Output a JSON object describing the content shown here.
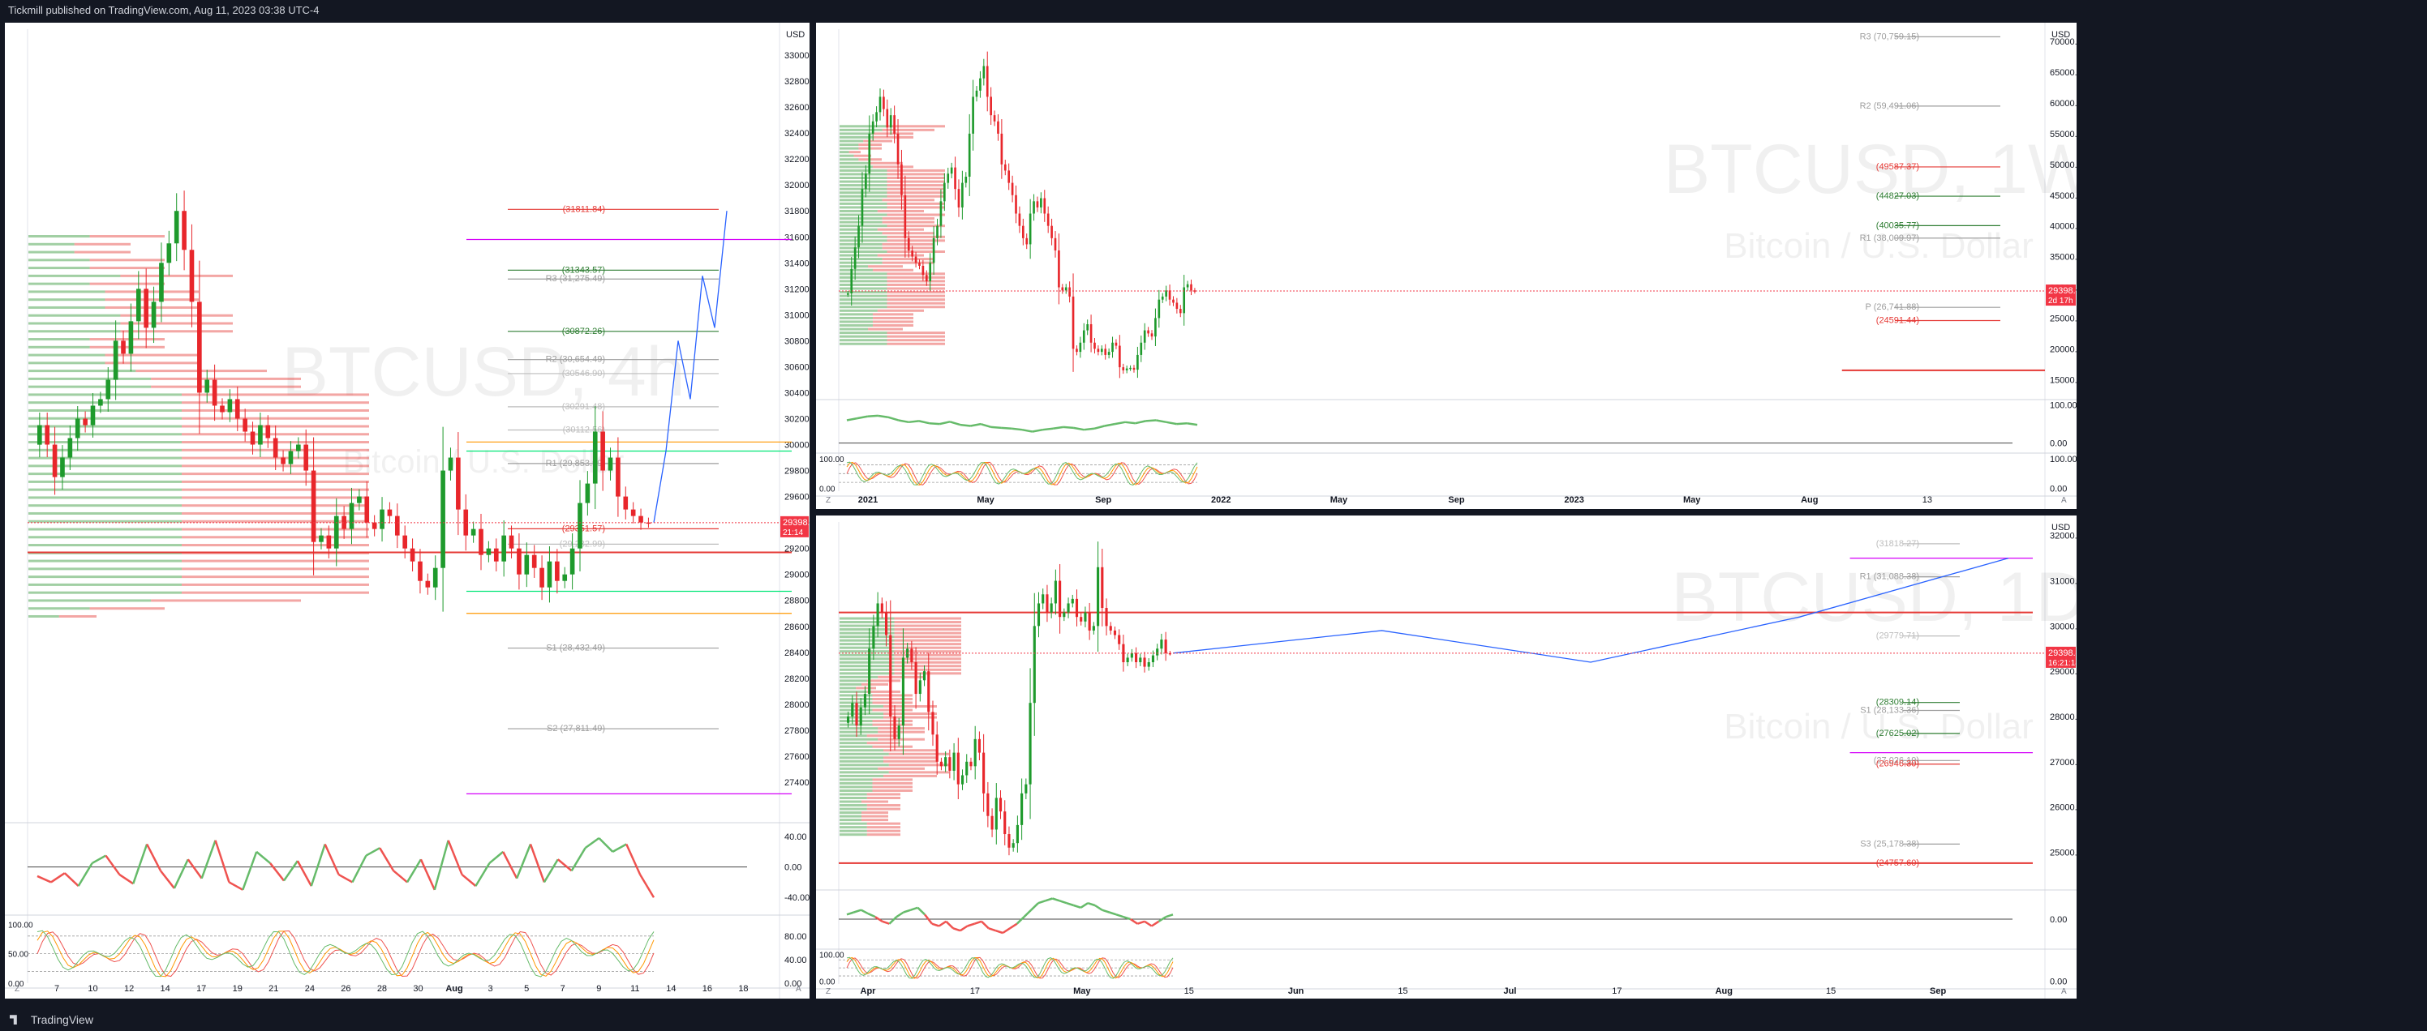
{
  "header": {
    "publish_line": "Tickmill published on TradingView.com, Aug 11, 2023 03:38 UTC-4"
  },
  "footer": {
    "brand": "TradingView"
  },
  "colors": {
    "up": "#26a69a",
    "down": "#ef5350",
    "green_candle": "#1e9a2c",
    "red_candle": "#e8262b",
    "background": "#131722",
    "panel": "#ffffff",
    "projection": "#2962ff"
  },
  "chart_data": [
    {
      "type": "candlestick",
      "title": "BTCUSD, 4h",
      "subtitle": "Bitcoin / U.S. Dollar",
      "currency": "USD",
      "ylim": [
        27100,
        33200
      ],
      "y_ticks": [
        "33000.00",
        "32800.00",
        "32600.00",
        "32400.00",
        "32200.00",
        "32000.00",
        "31800.00",
        "31600.00",
        "31400.00",
        "31200.00",
        "31000.00",
        "30800.00",
        "30600.00",
        "30400.00",
        "30200.00",
        "30000.00",
        "29800.00",
        "29600.00",
        "29400.00",
        "29200.00",
        "29000.00",
        "28800.00",
        "28600.00",
        "28400.00",
        "28200.00",
        "28000.00",
        "27800.00",
        "27600.00",
        "27400.00"
      ],
      "y_tick_values": [
        33000,
        32800,
        32600,
        32400,
        32200,
        32000,
        31800,
        31600,
        31400,
        31200,
        31000,
        30800,
        30600,
        30400,
        30200,
        30000,
        29800,
        29600,
        29400,
        29200,
        29000,
        28800,
        28600,
        28400,
        28200,
        28000,
        27800,
        27600,
        27400
      ],
      "x_ticks": [
        "7",
        "10",
        "12",
        "14",
        "17",
        "19",
        "21",
        "24",
        "26",
        "28",
        "30",
        "Aug",
        "3",
        "5",
        "7",
        "9",
        "11",
        "14",
        "16",
        "18"
      ],
      "price_tag": {
        "value": 29398.48,
        "label": "29398.48",
        "countdown": "21:14"
      },
      "close_series": [
        30150,
        30000,
        29750,
        29900,
        30050,
        30200,
        30150,
        30300,
        30350,
        30500,
        30800,
        30700,
        30950,
        31200,
        30900,
        31100,
        31400,
        31550,
        31800,
        31500,
        31100,
        30400,
        30500,
        30300,
        30250,
        30350,
        30200,
        30100,
        30000,
        30150,
        30050,
        29900,
        29850,
        29950,
        30000,
        29800,
        29250,
        29300,
        29200,
        29450,
        29350,
        29550,
        29600,
        29400,
        29350,
        29500,
        29450,
        29300,
        29200,
        29100,
        28950,
        28900,
        29050,
        29800,
        29900,
        29500,
        29300,
        29350,
        29150,
        29200,
        29100,
        29300,
        29200,
        29000,
        29150,
        29050,
        28900,
        29100,
        28950,
        29000,
        29200,
        29550,
        29700,
        30100,
        29800,
        29900,
        29600,
        29500,
        29450,
        29400,
        29398
      ],
      "levels": [
        {
          "label": "(31811.84)",
          "value": 31811.84,
          "color": "#e53935"
        },
        {
          "label": "(31343.57)",
          "value": 31343.57,
          "color": "#2e7d32"
        },
        {
          "label": "R3 (31,275.49)",
          "value": 31275.49,
          "color": "#9e9e9e"
        },
        {
          "label": "(30872.26)",
          "value": 30872.26,
          "color": "#2e7d32"
        },
        {
          "label": "R2 (30,654.49)",
          "value": 30654.49,
          "color": "#9e9e9e"
        },
        {
          "label": "(30546.90)",
          "value": 30546.9,
          "color": "#bdbdbd"
        },
        {
          "label": "(30291.48)",
          "value": 30291.48,
          "color": "#bdbdbd"
        },
        {
          "label": "(30112.56)",
          "value": 30112.56,
          "color": "#bdbdbd"
        },
        {
          "label": "R1 (29,853.99)",
          "value": 29853.99,
          "color": "#9e9e9e"
        },
        {
          "label": "(29351.57)",
          "value": 29351.57,
          "color": "#e53935"
        },
        {
          "label": "(29,232.99)",
          "value": 29232.99,
          "color": "#bdbdbd"
        },
        {
          "label": "S1 (28,432.49)",
          "value": 28432.49,
          "color": "#9e9e9e"
        },
        {
          "label": "S2 (27,811.49)",
          "value": 27811.49,
          "color": "#9e9e9e"
        }
      ],
      "horizontal_lines": [
        {
          "value": 31580,
          "color": "#d500f9"
        },
        {
          "value": 30020,
          "color": "#ff9800"
        },
        {
          "value": 29950,
          "color": "#00e676"
        },
        {
          "value": 29170,
          "color": "#e53935"
        },
        {
          "value": 28870,
          "color": "#00e676"
        },
        {
          "value": 28700,
          "color": "#ff9800"
        },
        {
          "value": 27310,
          "color": "#d500f9"
        }
      ],
      "projection": [
        29400,
        29950,
        30800,
        30350,
        31300,
        30900,
        31800
      ],
      "rsi": {
        "ticks": [
          "40.00",
          "0.00",
          "-40.00"
        ],
        "tick_values": [
          40,
          0,
          -40
        ],
        "ylim": [
          -60,
          55
        ],
        "values": [
          -12,
          -20,
          -8,
          -25,
          5,
          15,
          -10,
          -22,
          30,
          -5,
          -28,
          10,
          -15,
          35,
          -20,
          -30,
          20,
          5,
          -18,
          8,
          -25,
          30,
          -10,
          -20,
          15,
          25,
          -5,
          -20,
          10,
          -30,
          35,
          -10,
          -25,
          5,
          20,
          -15,
          30,
          -20,
          10,
          -5,
          25,
          38,
          20,
          30,
          -10,
          -40
        ]
      },
      "stoch": {
        "ticks": [
          "100.00",
          "50.00",
          "0.00"
        ],
        "right_ticks": [
          "80.00",
          "40.00",
          "0.00"
        ],
        "ylim": [
          0,
          110
        ]
      }
    },
    {
      "type": "candlestick",
      "title": "BTCUSD, 1W",
      "subtitle": "Bitcoin / U.S. Dollar",
      "currency": "USD",
      "ylim": [
        12000,
        72000
      ],
      "y_ticks": [
        "70000.00",
        "65000.00",
        "60000.00",
        "55000.00",
        "50000.00",
        "45000.00",
        "40000.00",
        "35000.00",
        "30000.00",
        "25000.00",
        "20000.00",
        "15000.00"
      ],
      "y_tick_values": [
        70000,
        65000,
        60000,
        55000,
        50000,
        45000,
        40000,
        35000,
        30000,
        25000,
        20000,
        15000
      ],
      "x_ticks": [
        "2021",
        "May",
        "Sep",
        "2022",
        "May",
        "Sep",
        "2023",
        "May",
        "Aug",
        "13"
      ],
      "price_tag": {
        "value": 29398.47,
        "label": "29398.47",
        "countdown": "2d 17h"
      },
      "close_series": [
        29000,
        33000,
        36500,
        40000,
        46000,
        48500,
        55000,
        57000,
        58500,
        61000,
        59000,
        56000,
        58000,
        55000,
        50000,
        45000,
        38000,
        36000,
        35000,
        34000,
        33500,
        32000,
        31000,
        34000,
        38000,
        40000,
        44000,
        47000,
        48500,
        49500,
        46000,
        43000,
        47000,
        48000,
        55000,
        61000,
        62000,
        64000,
        66000,
        61000,
        58000,
        57000,
        55000,
        50000,
        49000,
        47000,
        45000,
        42000,
        40000,
        38000,
        37000,
        42000,
        44000,
        43000,
        44500,
        42000,
        40000,
        38000,
        36000,
        30000,
        29500,
        30000,
        28500,
        20000,
        19500,
        21000,
        23000,
        24000,
        21000,
        20000,
        19500,
        20000,
        19000,
        19500,
        21000,
        20500,
        17000,
        16500,
        16800,
        16900,
        16600,
        19000,
        21000,
        23000,
        22500,
        22000,
        25000,
        28000,
        28500,
        29500,
        28000,
        27500,
        26500,
        25800,
        30000,
        30500,
        29500,
        29398
      ],
      "levels": [
        {
          "label": "R3 (70,759.15)",
          "value": 70759.15,
          "color": "#9e9e9e"
        },
        {
          "label": "R2 (59,491.06)",
          "value": 59491.06,
          "color": "#9e9e9e"
        },
        {
          "label": "(49587.37)",
          "value": 49587.37,
          "color": "#e53935"
        },
        {
          "label": "(44827.03)",
          "value": 44827.03,
          "color": "#2e7d32"
        },
        {
          "label": "(40035.77)",
          "value": 40035.77,
          "color": "#2e7d32"
        },
        {
          "label": "R1 (38,009.97)",
          "value": 38009.97,
          "color": "#9e9e9e"
        },
        {
          "label": "P (26,741.88)",
          "value": 26741.88,
          "color": "#9e9e9e"
        },
        {
          "label": "(24591.44)",
          "value": 24591.44,
          "color": "#e53935"
        }
      ],
      "horizontal_lines": [
        {
          "value": 16500,
          "color": "#e53935"
        }
      ],
      "rsi": {
        "ticks": [
          "100.00",
          "0.00"
        ],
        "tick_values": [
          100,
          0
        ],
        "ylim": [
          -20,
          110
        ],
        "values": [
          60,
          65,
          70,
          72,
          68,
          60,
          55,
          58,
          52,
          50,
          56,
          48,
          45,
          50,
          42,
          40,
          38,
          35,
          30,
          35,
          38,
          42,
          40,
          35,
          38,
          45,
          50,
          55,
          52,
          58,
          60,
          55,
          50,
          52,
          48
        ]
      },
      "stoch": {
        "ticks": [
          "100.00",
          "0.00"
        ],
        "right_ticks": [
          "100.00",
          "0.00"
        ],
        "ylim": [
          -10,
          120
        ]
      }
    },
    {
      "type": "candlestick",
      "title": "BTCUSD, 1D",
      "subtitle": "Bitcoin / U.S. Dollar",
      "currency": "USD",
      "ylim": [
        24200,
        32300
      ],
      "y_ticks": [
        "32000.00",
        "31000.00",
        "30000.00",
        "29000.00",
        "28000.00",
        "27000.00",
        "26000.00",
        "25000.00"
      ],
      "y_tick_values": [
        32000,
        31000,
        30000,
        29000,
        28000,
        27000,
        26000,
        25000
      ],
      "x_ticks": [
        "Apr",
        "17",
        "May",
        "15",
        "Jun",
        "15",
        "Jul",
        "17",
        "Aug",
        "15",
        "Sep"
      ],
      "price_tag": {
        "value": 29398.47,
        "label": "29398.47",
        "countdown": "16:21:14"
      },
      "close_series": [
        28000,
        28300,
        27800,
        28200,
        28500,
        29500,
        30000,
        30500,
        30300,
        29800,
        28000,
        27500,
        27800,
        29300,
        29500,
        29200,
        28500,
        28800,
        29000,
        28100,
        27600,
        27000,
        26900,
        27100,
        26800,
        27200,
        26500,
        26700,
        27000,
        26900,
        27500,
        27200,
        26300,
        25800,
        25500,
        26200,
        25900,
        25400,
        25100,
        25200,
        25600,
        26300,
        26500,
        28300,
        30000,
        30500,
        30700,
        30300,
        30500,
        31000,
        30200,
        30300,
        30500,
        30600,
        30200,
        30100,
        30300,
        29900,
        30000,
        31300,
        30400,
        30000,
        29900,
        29800,
        29600,
        29200,
        29300,
        29400,
        29200,
        29300,
        29100,
        29200,
        29350,
        29500,
        29700,
        29400,
        29398
      ],
      "levels": [
        {
          "label": "(31818.27)",
          "value": 31818.27,
          "color": "#bdbdbd"
        },
        {
          "label": "R1 (31,088.38)",
          "value": 31088.38,
          "color": "#9e9e9e"
        },
        {
          "label": "(29779.71)",
          "value": 29779.71,
          "color": "#bdbdbd"
        },
        {
          "label": "(28309.14)",
          "value": 28309.14,
          "color": "#2e7d32"
        },
        {
          "label": "S1 (28,133.36)",
          "value": 28133.36,
          "color": "#9e9e9e"
        },
        {
          "label": "(27625.02)",
          "value": 27625.02,
          "color": "#2e7d32"
        },
        {
          "label": "(27,026.19)",
          "value": 27026.19,
          "color": "#9e9e9e"
        },
        {
          "label": "(26946.30)",
          "value": 26946.3,
          "color": "#e53935"
        },
        {
          "label": "S3 (25,178.38)",
          "value": 25178.38,
          "color": "#9e9e9e"
        },
        {
          "label": "(24757.60)",
          "value": 24757.6,
          "color": "#e53935"
        }
      ],
      "horizontal_lines": [
        {
          "value": 30300,
          "color": "#e53935"
        },
        {
          "value": 31500,
          "color": "#d500f9"
        },
        {
          "value": 27200,
          "color": "#d500f9"
        },
        {
          "value": 24757.6,
          "color": "#e53935"
        }
      ],
      "projection": [
        29400,
        29900,
        29200,
        30200,
        31500
      ],
      "rsi": {
        "ticks": [
          "0.00"
        ],
        "tick_values": [
          0
        ],
        "ylim": [
          -60,
          60
        ],
        "values": [
          10,
          15,
          20,
          12,
          5,
          -5,
          -10,
          5,
          15,
          20,
          25,
          10,
          -10,
          -15,
          -5,
          -20,
          -25,
          -15,
          -10,
          -5,
          -20,
          -25,
          -30,
          -20,
          -10,
          5,
          20,
          35,
          40,
          45,
          40,
          35,
          30,
          25,
          35,
          30,
          20,
          15,
          10,
          5,
          0,
          -10,
          -5,
          -15,
          -5,
          5,
          10
        ]
      },
      "stoch": {
        "ticks": [
          "100.00",
          "0.00"
        ],
        "right_ticks": [
          "0.00"
        ],
        "ylim": [
          -10,
          120
        ]
      }
    }
  ]
}
